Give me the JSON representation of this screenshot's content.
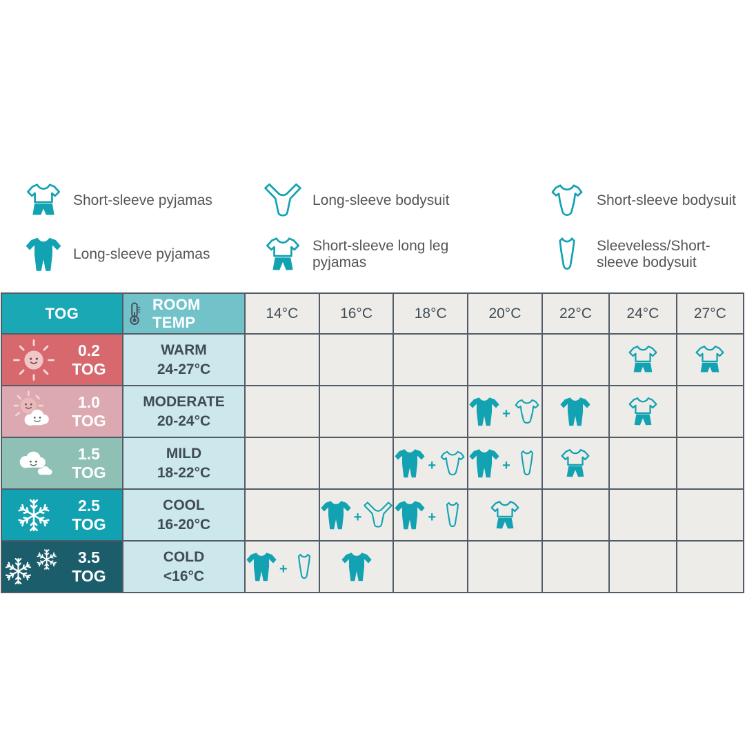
{
  "colors": {
    "teal_icon": "#12a2b2",
    "header_tog_bg": "#1aa8b5",
    "header_room_bg": "#72c2ca",
    "header_temp_bg": "#edece8",
    "room_cell_bg": "#cde8ec",
    "data_cell_bg": "#edece8",
    "border": "#525c66",
    "text_dark": "#3f4b55",
    "legend_text": "#545559"
  },
  "legend": {
    "items": [
      {
        "icon": "short-sleeve-pyjamas",
        "label": "Short-sleeve pyjamas"
      },
      {
        "icon": "long-sleeve-pyjamas",
        "label": "Long-sleeve pyjamas"
      },
      {
        "icon": "long-sleeve-bodysuit",
        "label": "Long-sleeve bodysuit"
      },
      {
        "icon": "short-sleeve-long-leg-pyjamas",
        "label": "Short-sleeve long leg pyjamas"
      },
      {
        "icon": "short-sleeve-bodysuit",
        "label": "Short-sleeve bodysuit"
      },
      {
        "icon": "sleeveless-bodysuit",
        "label": "Sleeveless/Short-sleeve bodysuit"
      }
    ]
  },
  "table": {
    "header": {
      "tog_label": "TOG",
      "room_temp_label": "ROOM TEMP",
      "temps": [
        "14°C",
        "16°C",
        "18°C",
        "20°C",
        "22°C",
        "24°C",
        "27°C"
      ]
    },
    "rows": [
      {
        "tog": "0.2 TOG",
        "weather_icon": "sun",
        "condition": "WARM",
        "range": "24-27°C",
        "bg": "#d6686e",
        "cells": [
          [],
          [],
          [],
          [],
          [],
          [
            "short-sleeve-pyjamas"
          ],
          [
            "short-sleeve-pyjamas"
          ]
        ]
      },
      {
        "tog": "1.0 TOG",
        "weather_icon": "sun-behind-cloud",
        "condition": "MODERATE",
        "range": "20-24°C",
        "bg": "#dca9b1",
        "cells": [
          [],
          [],
          [],
          [
            "long-sleeve-pyjamas",
            "plus",
            "short-sleeve-bodysuit"
          ],
          [
            "long-sleeve-pyjamas"
          ],
          [
            "short-sleeve-long-leg-pyjamas"
          ],
          []
        ]
      },
      {
        "tog": "1.5 TOG",
        "weather_icon": "cloud",
        "condition": "MILD",
        "range": "18-22°C",
        "bg": "#8fc0b5",
        "cells": [
          [],
          [],
          [
            "long-sleeve-pyjamas",
            "plus",
            "short-sleeve-bodysuit"
          ],
          [
            "long-sleeve-pyjamas",
            "plus",
            "sleeveless-bodysuit"
          ],
          [
            "short-sleeve-long-leg-pyjamas"
          ],
          [],
          []
        ]
      },
      {
        "tog": "2.5 TOG",
        "weather_icon": "snowflake",
        "condition": "COOL",
        "range": "16-20°C",
        "bg": "#12a1b1",
        "cells": [
          [],
          [
            "long-sleeve-pyjamas",
            "plus",
            "long-sleeve-bodysuit"
          ],
          [
            "long-sleeve-pyjamas",
            "plus",
            "sleeveless-bodysuit"
          ],
          [
            "short-sleeve-long-leg-pyjamas"
          ],
          [],
          [],
          []
        ]
      },
      {
        "tog": "3.5 TOG",
        "weather_icon": "double-snowflake",
        "condition": "COLD",
        "range": "<16°C",
        "bg": "#1b5d6a",
        "cells": [
          [
            "long-sleeve-pyjamas",
            "plus",
            "sleeveless-bodysuit"
          ],
          [
            "long-sleeve-pyjamas"
          ],
          [],
          [],
          [],
          [],
          []
        ]
      }
    ]
  }
}
